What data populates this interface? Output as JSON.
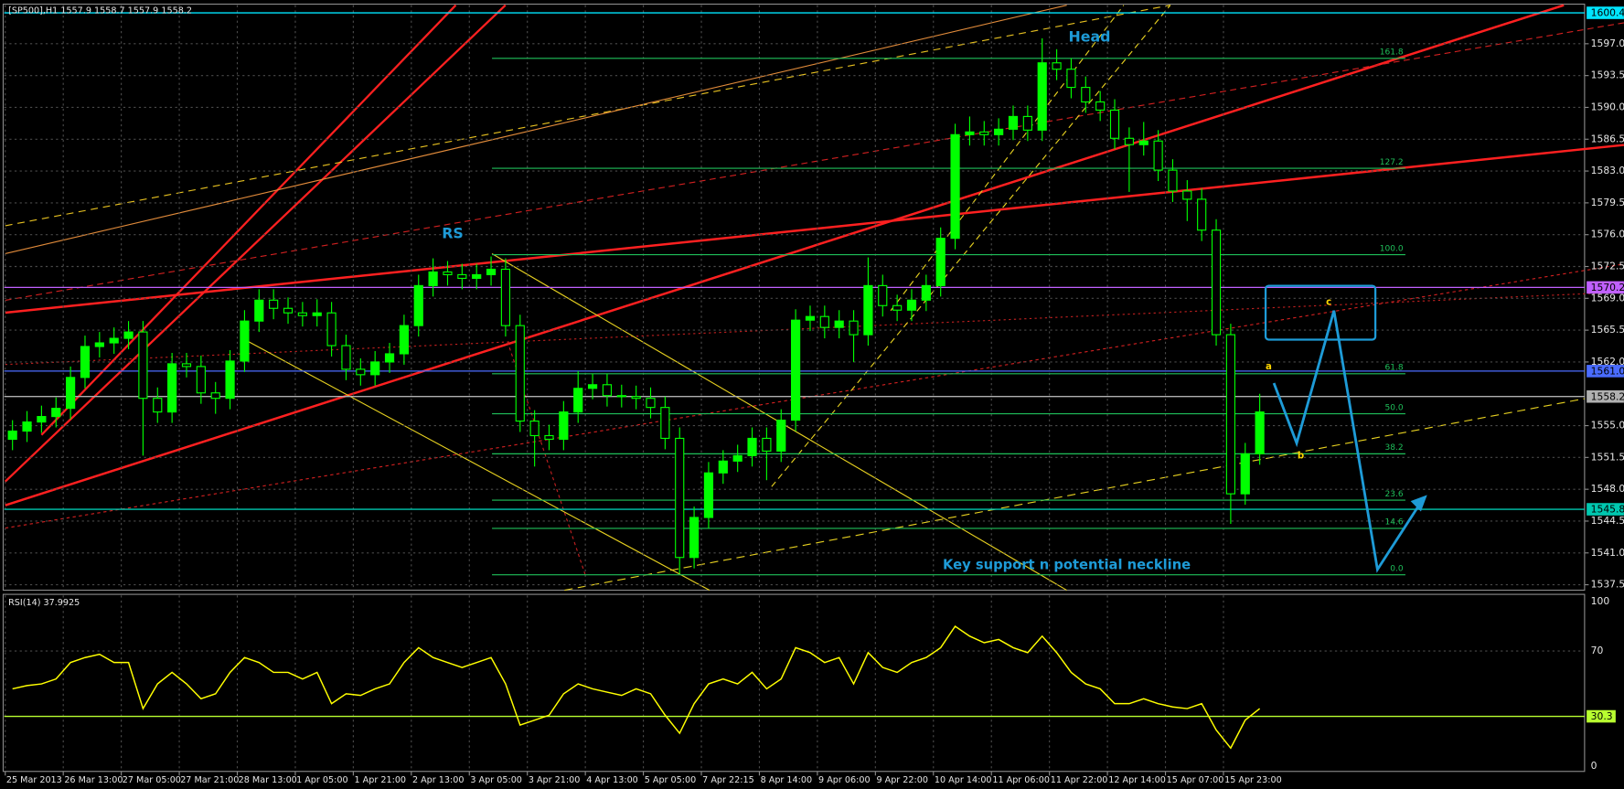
{
  "chart_data": [
    {
      "type": "candlestick",
      "title": "[SP500],H1  1557.9 1558.7 1557.9 1558.2",
      "color": "#00ff00",
      "xlim": [
        0,
        108.9
      ],
      "xticks": [
        {
          "value": 0,
          "label": "25 Mar 2013"
        },
        {
          "value": 4,
          "label": "26 Mar 13:00"
        },
        {
          "value": 8,
          "label": "27 Mar 05:00"
        },
        {
          "value": 12,
          "label": "27 Mar 21:00"
        },
        {
          "value": 16,
          "label": "28 Mar 13:00"
        },
        {
          "value": 20,
          "label": "1 Apr 05:00"
        },
        {
          "value": 24,
          "label": "1 Apr 21:00"
        },
        {
          "value": 28,
          "label": "2 Apr 13:00"
        },
        {
          "value": 32,
          "label": "3 Apr 05:00"
        },
        {
          "value": 36,
          "label": "3 Apr 21:00"
        },
        {
          "value": 40,
          "label": "4 Apr 13:00"
        },
        {
          "value": 44,
          "label": "5 Apr 05:00"
        },
        {
          "value": 48,
          "label": "7 Apr 22:15"
        },
        {
          "value": 52,
          "label": "8 Apr 14:00"
        },
        {
          "value": 56,
          "label": "9 Apr 06:00"
        },
        {
          "value": 60,
          "label": "9 Apr 22:00"
        },
        {
          "value": 64,
          "label": "10 Apr 14:00"
        },
        {
          "value": 68,
          "label": "11 Apr 06:00"
        },
        {
          "value": 72,
          "label": "11 Apr 22:00"
        },
        {
          "value": 76,
          "label": "12 Apr 14:00"
        },
        {
          "value": 80,
          "label": "15 Apr 07:00"
        },
        {
          "value": 84,
          "label": "15 Apr 23:00"
        }
      ],
      "ylim": [
        1536.9,
        1600.9
      ],
      "yticks": [
        {
          "value": 1597,
          "label": "1597.0"
        },
        1593.5,
        {
          "value": 1590,
          "label": "1590.0"
        },
        1586.5,
        {
          "value": 1583,
          "label": "1583.0"
        },
        1579.5,
        {
          "value": 1576,
          "label": "1576.0"
        },
        1572.5,
        {
          "value": 1569,
          "label": "1569.0"
        },
        1565.5,
        {
          "value": 1562,
          "label": "1562.0"
        },
        {
          "value": 1555,
          "label": "1555.0"
        },
        1551.5,
        {
          "value": 1548,
          "label": "1548.0"
        },
        1544.5,
        {
          "value": 1541,
          "label": "1541.0"
        },
        1537.5
      ],
      "grid": true,
      "open": [
        1553.5,
        1554.4,
        1555.4,
        1556.0,
        1556.9,
        1560.3,
        1563.7,
        1564.1,
        1564.6,
        1565.3,
        1558.0,
        1556.5,
        1561.8,
        1561.5,
        1558.6,
        1558.0,
        1562.1,
        1566.5,
        1568.8,
        1567.9,
        1567.4,
        1567.1,
        1567.4,
        1563.8,
        1561.2,
        1560.6,
        1562.0,
        1562.9,
        1566.0,
        1570.4,
        1571.9,
        1571.6,
        1571.2,
        1571.6,
        1572.2,
        1566.0,
        1555.5,
        1553.9,
        1553.5,
        1556.5,
        1559.1,
        1559.5,
        1558.3,
        1558.2,
        1558.0,
        1557.0,
        1553.6,
        1540.5,
        1544.9,
        1549.8,
        1551.1,
        1551.7,
        1553.6,
        1552.2,
        1555.6,
        1566.6,
        1567.0,
        1565.8,
        1566.5,
        1565.0,
        1570.4,
        1568.2,
        1567.7,
        1568.8,
        1570.4,
        1575.6,
        1587.0,
        1587.3,
        1587.0,
        1587.6,
        1589.0,
        1587.5,
        1594.9,
        1594.2,
        1592.2,
        1590.6,
        1589.7,
        1586.6,
        1585.9,
        1586.3,
        1583.1,
        1580.8,
        1579.9,
        1576.5,
        1565.0,
        1547.5,
        1551.9
      ],
      "high": [
        1555.6,
        1556.6,
        1557.2,
        1558.1,
        1561.5,
        1564.9,
        1565.3,
        1565.8,
        1566.5,
        1566.5,
        1559.2,
        1563.0,
        1563.0,
        1562.7,
        1559.8,
        1563.3,
        1567.7,
        1570.0,
        1570.0,
        1569.1,
        1568.6,
        1568.9,
        1568.6,
        1565.0,
        1562.4,
        1563.2,
        1564.1,
        1567.2,
        1571.6,
        1573.4,
        1573.1,
        1572.8,
        1572.8,
        1573.6,
        1573.4,
        1567.2,
        1556.7,
        1555.1,
        1557.7,
        1561.0,
        1560.7,
        1560.7,
        1559.5,
        1559.4,
        1559.2,
        1558.2,
        1554.8,
        1546.1,
        1551.0,
        1552.3,
        1552.9,
        1554.8,
        1554.8,
        1556.8,
        1567.8,
        1568.2,
        1568.2,
        1567.7,
        1567.7,
        1573.5,
        1571.6,
        1569.4,
        1570.0,
        1571.6,
        1576.8,
        1588.2,
        1589.0,
        1588.5,
        1588.8,
        1590.2,
        1590.2,
        1597.6,
        1596.4,
        1595.4,
        1593.4,
        1591.8,
        1590.9,
        1587.8,
        1588.4,
        1587.5,
        1584.3,
        1582.0,
        1581.1,
        1577.7,
        1566.2,
        1553.1,
        1558.5
      ],
      "low": [
        1552.3,
        1553.2,
        1554.2,
        1554.8,
        1555.7,
        1559.1,
        1562.5,
        1562.9,
        1563.4,
        1551.7,
        1555.3,
        1555.3,
        1560.3,
        1557.4,
        1556.3,
        1556.8,
        1560.9,
        1565.3,
        1566.7,
        1566.2,
        1565.9,
        1565.9,
        1562.6,
        1560.0,
        1559.4,
        1559.4,
        1560.8,
        1561.7,
        1564.8,
        1569.2,
        1570.4,
        1570.0,
        1570.0,
        1570.4,
        1564.8,
        1554.3,
        1550.5,
        1552.3,
        1552.3,
        1555.3,
        1557.9,
        1557.1,
        1557.0,
        1556.8,
        1555.8,
        1552.4,
        1538.7,
        1539.3,
        1543.7,
        1548.6,
        1549.9,
        1550.5,
        1549.0,
        1551.0,
        1554.4,
        1565.4,
        1564.6,
        1564.6,
        1562.0,
        1563.8,
        1567.0,
        1566.5,
        1566.5,
        1567.6,
        1569.2,
        1574.4,
        1585.8,
        1585.8,
        1585.8,
        1586.4,
        1586.3,
        1586.3,
        1593.0,
        1591.0,
        1589.4,
        1588.5,
        1585.4,
        1580.7,
        1584.7,
        1581.9,
        1579.6,
        1577.5,
        1575.3,
        1563.8,
        1544.2,
        1546.3,
        1550.7
      ],
      "close": [
        1554.4,
        1555.4,
        1556.0,
        1556.9,
        1560.3,
        1563.7,
        1564.1,
        1564.6,
        1565.3,
        1558.0,
        1556.5,
        1561.8,
        1561.5,
        1558.6,
        1558.0,
        1562.1,
        1566.5,
        1568.8,
        1567.9,
        1567.4,
        1567.1,
        1567.4,
        1563.8,
        1561.2,
        1560.6,
        1562.0,
        1562.9,
        1566.0,
        1570.4,
        1571.9,
        1571.6,
        1571.2,
        1571.6,
        1572.2,
        1566.0,
        1555.5,
        1553.9,
        1553.5,
        1556.5,
        1559.1,
        1559.5,
        1558.3,
        1558.2,
        1558.0,
        1557.0,
        1553.6,
        1540.5,
        1544.9,
        1549.8,
        1551.1,
        1551.7,
        1553.6,
        1552.2,
        1555.6,
        1566.6,
        1567.0,
        1565.8,
        1566.5,
        1565.0,
        1570.4,
        1568.2,
        1567.7,
        1568.8,
        1570.4,
        1575.6,
        1587.0,
        1587.3,
        1587.0,
        1587.6,
        1589.0,
        1587.5,
        1594.9,
        1594.2,
        1592.2,
        1590.6,
        1589.7,
        1586.6,
        1585.9,
        1586.3,
        1583.1,
        1580.8,
        1579.9,
        1576.5,
        1565.0,
        1547.5,
        1551.9,
        1556.5
      ],
      "price_lines": [
        {
          "value": 1600.4,
          "color": "#00e5ff"
        },
        {
          "value": 1570.2,
          "color": "#c060ff"
        },
        {
          "value": 1561,
          "label": "1561.0",
          "color": "#4a6cff"
        },
        {
          "value": 1558.2,
          "color": "#b0b0b0"
        },
        {
          "value": 1545.8,
          "color": "#00c8b0"
        }
      ],
      "fib_levels": {
        "labels": [
          "161.8",
          "127.2",
          "100.0",
          "61.8",
          "50.0",
          "38.2",
          "23.6",
          "14.6",
          "0.0"
        ],
        "prices": [
          1595.4,
          1583.3,
          1573.8,
          1560.7,
          1556.3,
          1551.9,
          1546.8,
          1543.7,
          1538.6
        ],
        "color": "#1fbf5a"
      },
      "annotations": [
        "Head",
        "RS",
        "Key support n potential neckline",
        "a",
        "b",
        "c"
      ]
    },
    {
      "type": "line",
      "title": "RSI(14) 37.9925",
      "color": "#ffff00",
      "ylim": [
        0,
        100
      ],
      "yticks": [
        0,
        70,
        100
      ],
      "level": 30.3,
      "level_color": "#b8ff30",
      "values": [
        47,
        49,
        50,
        53,
        63,
        66,
        68,
        63,
        63,
        35,
        50,
        57,
        50,
        41,
        44,
        57,
        66,
        63,
        57,
        57,
        53,
        57,
        38,
        44,
        43,
        47,
        50,
        63,
        72,
        66,
        63,
        60,
        63,
        66,
        50,
        25,
        28,
        31,
        44,
        50,
        47,
        45,
        43,
        47,
        44,
        31,
        20,
        38,
        50,
        53,
        50,
        57,
        47,
        53,
        72,
        69,
        63,
        66,
        50,
        69,
        60,
        57,
        63,
        66,
        72,
        85,
        79,
        75,
        77,
        72,
        69,
        79,
        69,
        57,
        50,
        47,
        38,
        38,
        41,
        38,
        36,
        35,
        38,
        22,
        11,
        28,
        35
      ]
    }
  ]
}
